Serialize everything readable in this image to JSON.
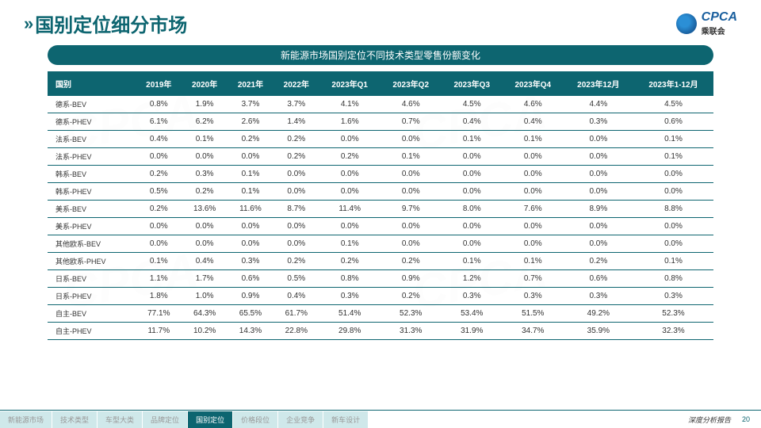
{
  "header": {
    "title": "国别定位细分市场",
    "logo_text": "CPCA",
    "logo_sub": "乘联会"
  },
  "subtitle": "新能源市场国别定位不同技术类型零售份额变化",
  "table": {
    "columns": [
      "国别",
      "2019年",
      "2020年",
      "2021年",
      "2022年",
      "2023年Q1",
      "2023年Q2",
      "2023年Q3",
      "2023年Q4",
      "2023年12月",
      "2023年1-12月"
    ],
    "rows": [
      [
        "德系-BEV",
        "0.8%",
        "1.9%",
        "3.7%",
        "3.7%",
        "4.1%",
        "4.6%",
        "4.5%",
        "4.6%",
        "4.4%",
        "4.5%"
      ],
      [
        "德系-PHEV",
        "6.1%",
        "6.2%",
        "2.6%",
        "1.4%",
        "1.6%",
        "0.7%",
        "0.4%",
        "0.4%",
        "0.3%",
        "0.6%"
      ],
      [
        "法系-BEV",
        "0.4%",
        "0.1%",
        "0.2%",
        "0.2%",
        "0.0%",
        "0.0%",
        "0.1%",
        "0.1%",
        "0.0%",
        "0.1%"
      ],
      [
        "法系-PHEV",
        "0.0%",
        "0.0%",
        "0.0%",
        "0.2%",
        "0.2%",
        "0.1%",
        "0.0%",
        "0.0%",
        "0.0%",
        "0.1%"
      ],
      [
        "韩系-BEV",
        "0.2%",
        "0.3%",
        "0.1%",
        "0.0%",
        "0.0%",
        "0.0%",
        "0.0%",
        "0.0%",
        "0.0%",
        "0.0%"
      ],
      [
        "韩系-PHEV",
        "0.5%",
        "0.2%",
        "0.1%",
        "0.0%",
        "0.0%",
        "0.0%",
        "0.0%",
        "0.0%",
        "0.0%",
        "0.0%"
      ],
      [
        "美系-BEV",
        "0.2%",
        "13.6%",
        "11.6%",
        "8.7%",
        "11.4%",
        "9.7%",
        "8.0%",
        "7.6%",
        "8.9%",
        "8.8%"
      ],
      [
        "美系-PHEV",
        "0.0%",
        "0.0%",
        "0.0%",
        "0.0%",
        "0.0%",
        "0.0%",
        "0.0%",
        "0.0%",
        "0.0%",
        "0.0%"
      ],
      [
        "其他欧系-BEV",
        "0.0%",
        "0.0%",
        "0.0%",
        "0.0%",
        "0.1%",
        "0.0%",
        "0.0%",
        "0.0%",
        "0.0%",
        "0.0%"
      ],
      [
        "其他欧系-PHEV",
        "0.1%",
        "0.4%",
        "0.3%",
        "0.2%",
        "0.2%",
        "0.2%",
        "0.1%",
        "0.1%",
        "0.2%",
        "0.1%"
      ],
      [
        "日系-BEV",
        "1.1%",
        "1.7%",
        "0.6%",
        "0.5%",
        "0.8%",
        "0.9%",
        "1.2%",
        "0.7%",
        "0.6%",
        "0.8%"
      ],
      [
        "日系-PHEV",
        "1.8%",
        "1.0%",
        "0.9%",
        "0.4%",
        "0.3%",
        "0.2%",
        "0.3%",
        "0.3%",
        "0.3%",
        "0.3%"
      ],
      [
        "自主-BEV",
        "77.1%",
        "64.3%",
        "65.5%",
        "61.7%",
        "51.4%",
        "52.3%",
        "53.4%",
        "51.5%",
        "49.2%",
        "52.3%"
      ],
      [
        "自主-PHEV",
        "11.7%",
        "10.2%",
        "14.3%",
        "22.8%",
        "29.8%",
        "31.3%",
        "31.9%",
        "34.7%",
        "35.9%",
        "32.3%"
      ]
    ]
  },
  "footer": {
    "tabs": [
      "新能源市场",
      "技术类型",
      "车型大类",
      "品牌定位",
      "国别定位",
      "价格段位",
      "企业竞争",
      "新车设计"
    ],
    "active_tab_index": 4,
    "report_label": "深度分析报告",
    "page": "20"
  },
  "colors": {
    "primary": "#0d6570",
    "tab_inactive_bg": "#cfe8ea"
  }
}
